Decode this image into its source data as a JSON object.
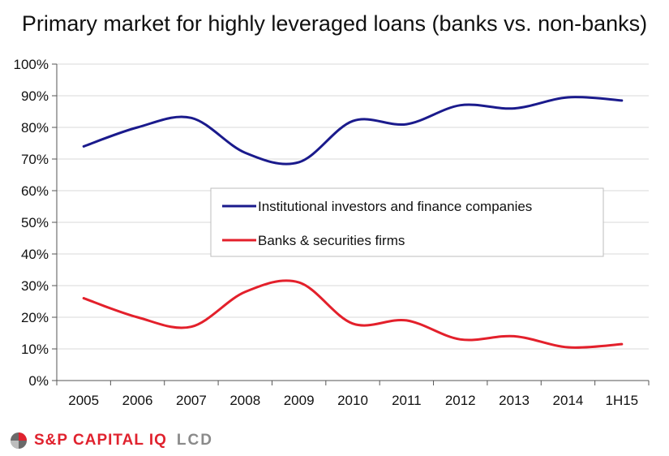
{
  "colors": {
    "institutional": "#1a1a8c",
    "banks": "#e3202b",
    "brand_red": "#e0222e",
    "brand_gray": "#8a8a8a",
    "grid": "#d9d9d9"
  },
  "chart_data": {
    "type": "line",
    "title": "Primary market for highly leveraged loans (banks vs. non-banks)",
    "xlabel": "",
    "ylabel": "",
    "categories": [
      "2005",
      "2006",
      "2007",
      "2008",
      "2009",
      "2010",
      "2011",
      "2012",
      "2013",
      "2014",
      "1H15"
    ],
    "y_ticks": [
      "0%",
      "10%",
      "20%",
      "30%",
      "40%",
      "50%",
      "60%",
      "70%",
      "80%",
      "90%",
      "100%"
    ],
    "ylim": [
      0,
      100
    ],
    "grid": true,
    "legend_position": "center",
    "series": [
      {
        "name": "Institutional investors and finance companies",
        "color_key": "institutional",
        "values": [
          74,
          80,
          83,
          72,
          69,
          82,
          81,
          87,
          86,
          89.5,
          88.5
        ]
      },
      {
        "name": "Banks & securities firms",
        "color_key": "banks",
        "values": [
          26,
          20,
          17,
          28,
          31,
          18,
          19,
          13,
          14,
          10.5,
          11.5
        ]
      }
    ]
  },
  "footer": {
    "logo_icon": "sp-logo-icon",
    "brand_primary": "S&P CAPITAL IQ",
    "brand_secondary": "LCD"
  }
}
